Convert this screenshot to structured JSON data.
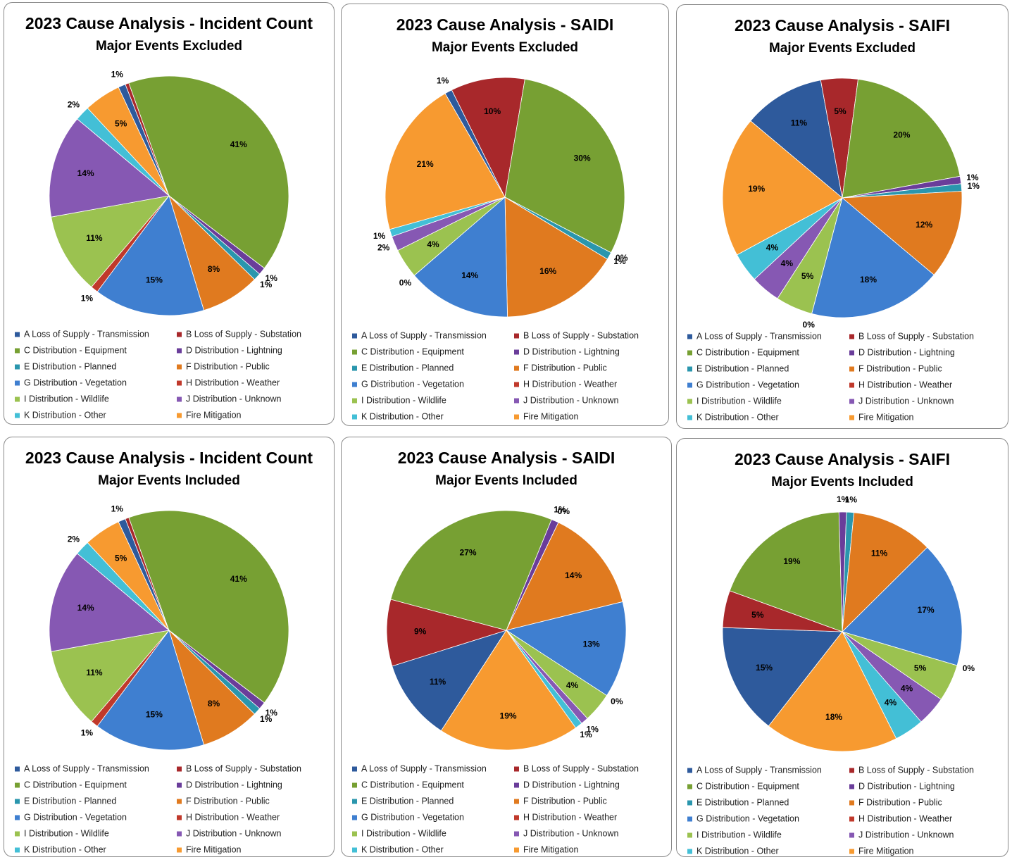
{
  "chart_data": [
    {
      "type": "pie",
      "title": "2023 Cause Analysis - Incident Count",
      "subtitle": "Major Events Excluded",
      "categories": [
        "A Loss of Supply - Transmission",
        "B Loss of Supply - Substation",
        "C Distribution - Equipment",
        "D Distribution - Lightning",
        "E Distribution - Planned",
        "F Distribution - Public",
        "G Distribution - Vegetation",
        "H Distribution - Weather",
        "I Distribution - Wildlife",
        "J Distribution - Unknown",
        "K Distribution - Other",
        "Fire Mitigation"
      ],
      "values": [
        1,
        0.5,
        41,
        1,
        1,
        8,
        15,
        1,
        11,
        14,
        2,
        5
      ],
      "value_labels": [
        "1%",
        null,
        "41%",
        "1%",
        "1%",
        "8%",
        "15%",
        "1%",
        "11%",
        "14%",
        "2%",
        "5%"
      ],
      "colors": [
        "#2e5a9c",
        "#a8282b",
        "#77a033",
        "#6a3d9a",
        "#2a96ad",
        "#e07a1f",
        "#3f7fd0",
        "#c0392b",
        "#9bc250",
        "#8658b3",
        "#43bfd6",
        "#f79a30"
      ]
    },
    {
      "type": "pie",
      "title": "2023 Cause Analysis - SAIDI",
      "subtitle": "Major Events Excluded",
      "categories": [
        "A Loss of Supply - Transmission",
        "B Loss of Supply - Substation",
        "C Distribution - Equipment",
        "D Distribution - Lightning",
        "E Distribution - Planned",
        "F Distribution - Public",
        "G Distribution - Vegetation",
        "H Distribution - Weather",
        "I Distribution - Wildlife",
        "J Distribution - Unknown",
        "K Distribution - Other",
        "Fire Mitigation"
      ],
      "values": [
        1,
        10,
        30,
        0,
        1,
        16,
        14,
        0,
        4,
        2,
        1,
        21
      ],
      "value_labels": [
        "1%",
        "10%",
        "30%",
        "0%",
        "1%",
        "16%",
        "14%",
        "0%",
        "4%",
        "2%",
        "1%",
        "21%"
      ],
      "colors": [
        "#2e5a9c",
        "#a8282b",
        "#77a033",
        "#6a3d9a",
        "#2a96ad",
        "#e07a1f",
        "#3f7fd0",
        "#c0392b",
        "#9bc250",
        "#8658b3",
        "#43bfd6",
        "#f79a30"
      ]
    },
    {
      "type": "pie",
      "title": "2023 Cause Analysis - SAIFI",
      "subtitle": "Major Events Excluded",
      "categories": [
        "A Loss of Supply - Transmission",
        "B Loss of Supply - Substation",
        "C Distribution - Equipment",
        "D Distribution - Lightning",
        "E Distribution - Planned",
        "F Distribution - Public",
        "G Distribution - Vegetation",
        "H Distribution - Weather",
        "I Distribution - Wildlife",
        "J Distribution - Unknown",
        "K Distribution - Other",
        "Fire Mitigation"
      ],
      "values": [
        11,
        5,
        20,
        1,
        1,
        12,
        18,
        0,
        5,
        4,
        4,
        19
      ],
      "value_labels": [
        "11%",
        "5%",
        "20%",
        "1%",
        "1%",
        "12%",
        "18%",
        "0%",
        "5%",
        "4%",
        "4%",
        "19%"
      ],
      "colors": [
        "#2e5a9c",
        "#a8282b",
        "#77a033",
        "#6a3d9a",
        "#2a96ad",
        "#e07a1f",
        "#3f7fd0",
        "#c0392b",
        "#9bc250",
        "#8658b3",
        "#43bfd6",
        "#f79a30"
      ]
    },
    {
      "type": "pie",
      "title": "2023 Cause Analysis - Incident Count",
      "subtitle": "Major Events Included",
      "categories": [
        "A Loss of Supply - Transmission",
        "B Loss of Supply - Substation",
        "C Distribution - Equipment",
        "D Distribution - Lightning",
        "E Distribution - Planned",
        "F Distribution - Public",
        "G Distribution - Vegetation",
        "H Distribution - Weather",
        "I Distribution - Wildlife",
        "J Distribution - Unknown",
        "K Distribution - Other",
        "Fire Mitigation"
      ],
      "values": [
        1,
        0.5,
        41,
        1,
        1,
        8,
        15,
        1,
        11,
        14,
        2,
        5
      ],
      "value_labels": [
        "1%",
        null,
        "41%",
        "1%",
        "1%",
        "8%",
        "15%",
        "1%",
        "11%",
        "14%",
        "2%",
        "5%"
      ],
      "colors": [
        "#2e5a9c",
        "#a8282b",
        "#77a033",
        "#6a3d9a",
        "#2a96ad",
        "#e07a1f",
        "#3f7fd0",
        "#c0392b",
        "#9bc250",
        "#8658b3",
        "#43bfd6",
        "#f79a30"
      ]
    },
    {
      "type": "pie",
      "title": "2023 Cause Analysis - SAIDI",
      "subtitle": "Major Events Included",
      "categories": [
        "A Loss of Supply - Transmission",
        "B Loss of Supply - Substation",
        "C Distribution - Equipment",
        "D Distribution - Lightning",
        "E Distribution - Planned",
        "F Distribution - Public",
        "G Distribution - Vegetation",
        "H Distribution - Weather",
        "I Distribution - Wildlife",
        "J Distribution - Unknown",
        "K Distribution - Other",
        "Fire Mitigation"
      ],
      "values": [
        11,
        9,
        27,
        1,
        0,
        14,
        13,
        0,
        4,
        1,
        1,
        19
      ],
      "value_labels": [
        "11%",
        "9%",
        "27%",
        "1%",
        "0%",
        "14%",
        "13%",
        "0%",
        "4%",
        "1%",
        "1%",
        "19%"
      ],
      "colors": [
        "#2e5a9c",
        "#a8282b",
        "#77a033",
        "#6a3d9a",
        "#2a96ad",
        "#e07a1f",
        "#3f7fd0",
        "#c0392b",
        "#9bc250",
        "#8658b3",
        "#43bfd6",
        "#f79a30"
      ]
    },
    {
      "type": "pie",
      "title": "2023 Cause Analysis - SAIFI",
      "subtitle": "Major Events Included",
      "categories": [
        "A Loss of Supply - Transmission",
        "B Loss of Supply - Substation",
        "C Distribution - Equipment",
        "D Distribution - Lightning",
        "E Distribution - Planned",
        "F Distribution - Public",
        "G Distribution - Vegetation",
        "H Distribution - Weather",
        "I Distribution - Wildlife",
        "J Distribution - Unknown",
        "K Distribution - Other",
        "Fire Mitigation"
      ],
      "values": [
        15,
        5,
        19,
        1,
        1,
        11,
        17,
        0,
        5,
        4,
        4,
        18
      ],
      "value_labels": [
        "15%",
        "5%",
        "19%",
        "1%",
        "1%",
        "11%",
        "17%",
        "0%",
        "5%",
        "4%",
        "4%",
        "18%"
      ],
      "colors": [
        "#2e5a9c",
        "#a8282b",
        "#77a033",
        "#6a3d9a",
        "#2a96ad",
        "#e07a1f",
        "#3f7fd0",
        "#c0392b",
        "#9bc250",
        "#8658b3",
        "#43bfd6",
        "#f79a30"
      ]
    }
  ]
}
